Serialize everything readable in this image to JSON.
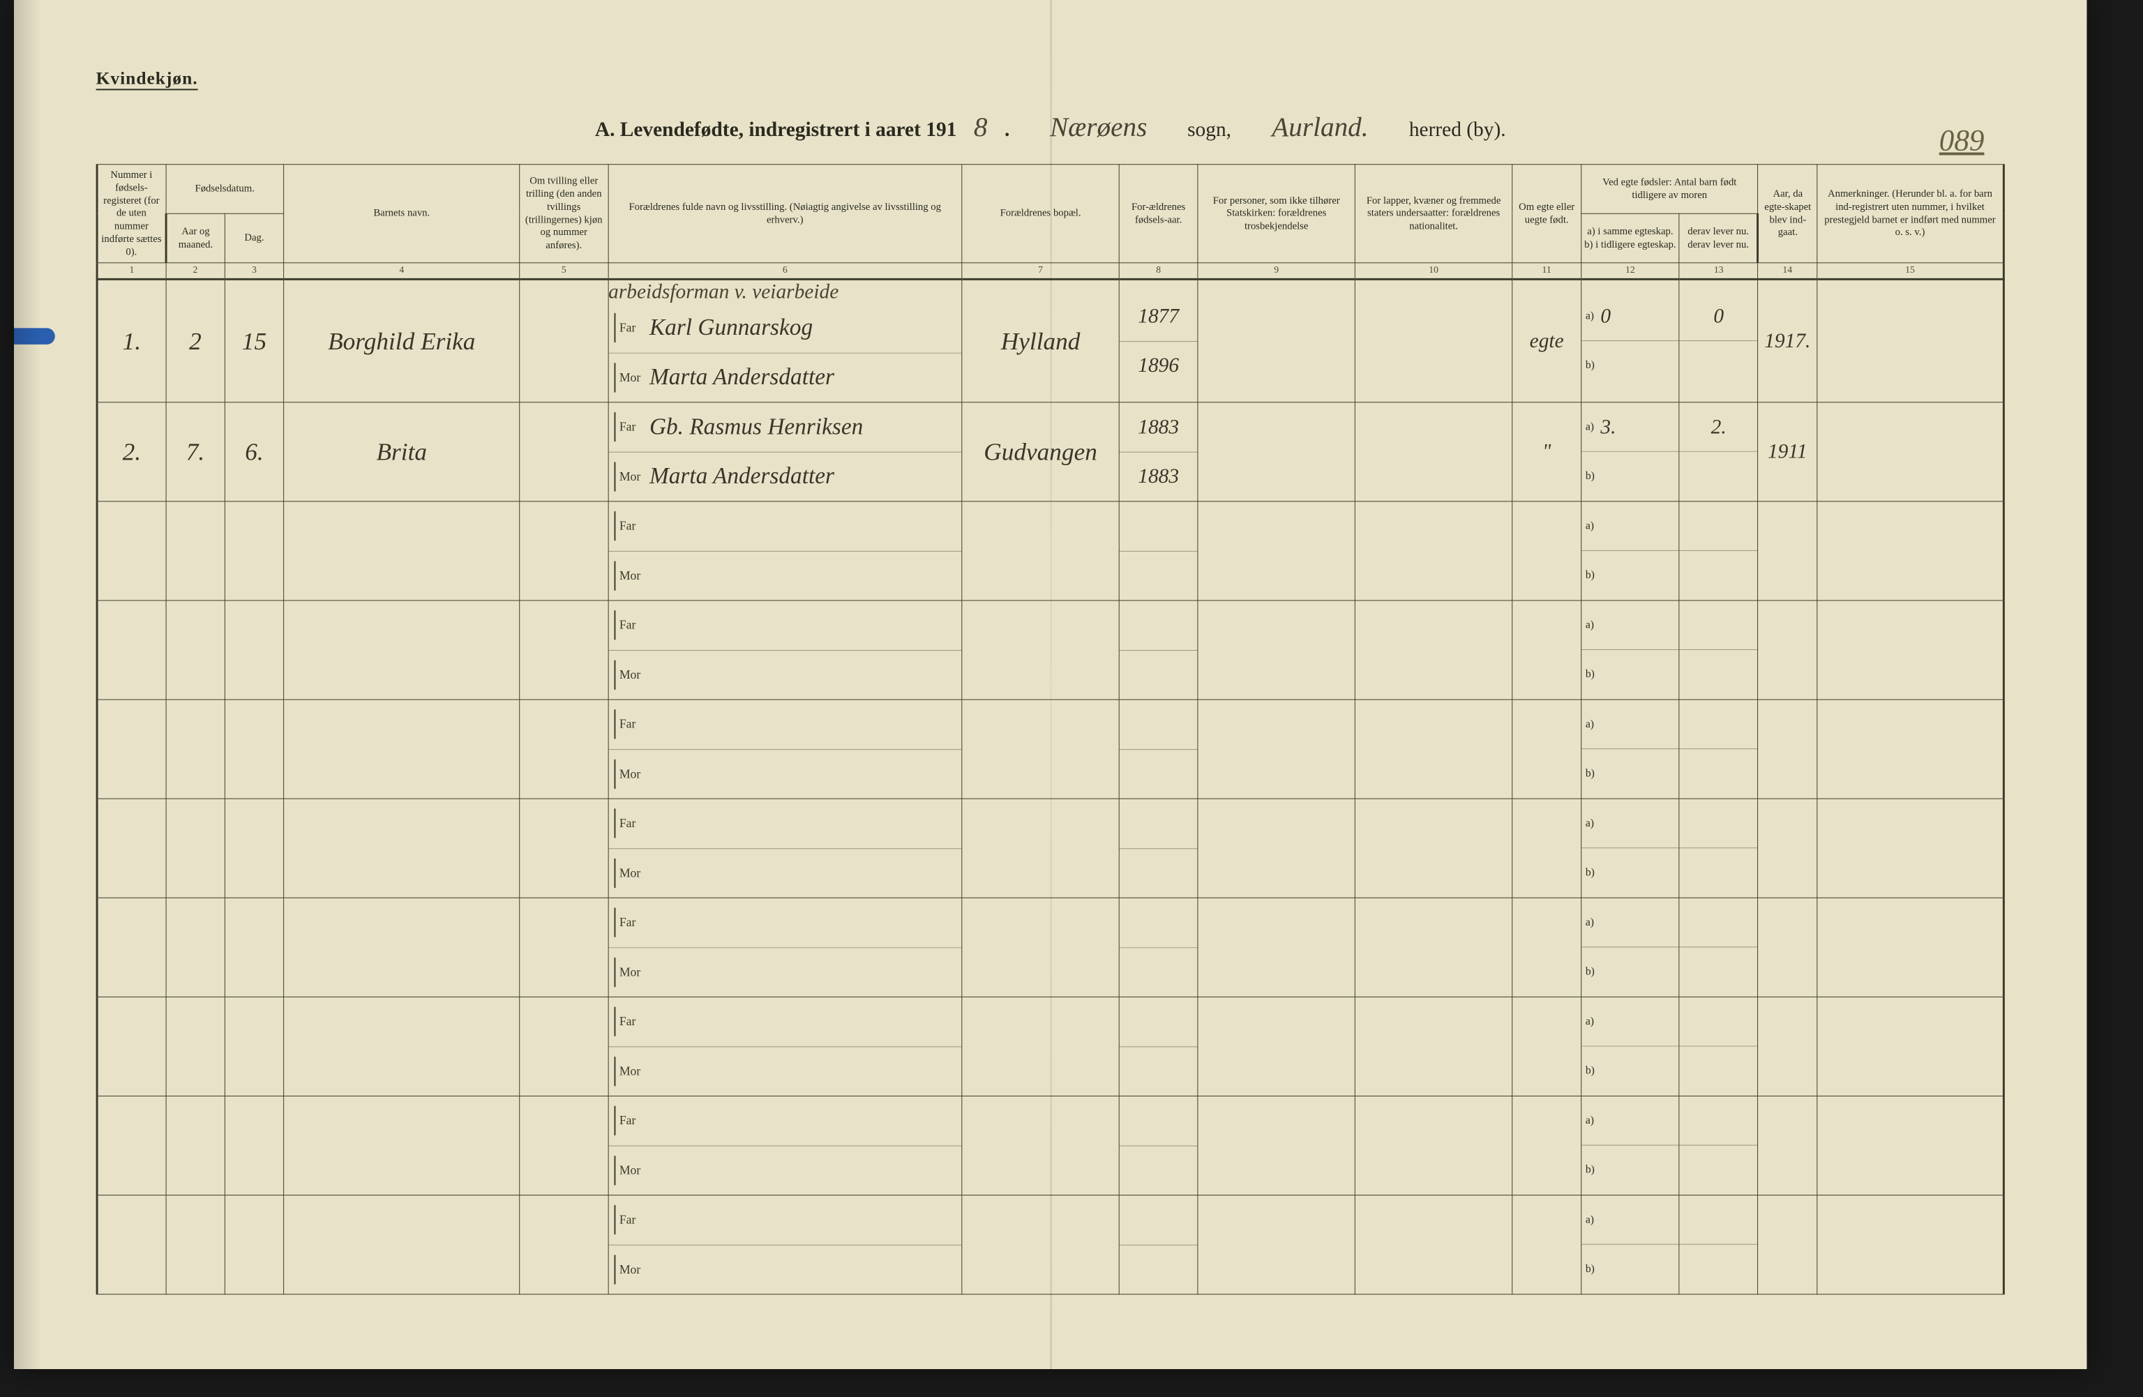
{
  "colors": {
    "paper": "#e8e3c8",
    "ink": "#2a2a20",
    "rule": "#3a3a2a",
    "handwriting": "#3a3528",
    "blue_tab": "#2a5fb0"
  },
  "header": {
    "gender_label": "Kvindekjøn.",
    "title_prefix": "A.  Levendefødte, indregistrert i aaret 191",
    "year_suffix": "8",
    "title_sep1": ".",
    "sogn_hand": "Nærøens",
    "sogn_label": "sogn,",
    "herred_hand": "Aurland.",
    "herred_label": "herred (by).",
    "page_number": "089"
  },
  "columns": {
    "c1": "Nummer i fødsels-registeret (for de uten nummer indførte sættes 0).",
    "c2_group": "Fødselsdatum.",
    "c2": "Aar og maaned.",
    "c3": "Dag.",
    "c4": "Barnets navn.",
    "c5": "Om tvilling eller trilling (den anden tvillings (trillingernes) kjøn og nummer anføres).",
    "c6": "Forældrenes fulde navn og livsstilling. (Nøiagtig angivelse av livsstilling og erhverv.)",
    "c7": "Forældrenes bopæl.",
    "c8": "For-ældrenes fødsels-aar.",
    "c9": "For personer, som ikke tilhører Statskirken: forældrenes trosbekjendelse",
    "c10": "For lapper, kvæner og fremmede staters undersaatter: forældrenes nationalitet.",
    "c11": "Om egte eller uegte født.",
    "c12_group": "Ved egte fødsler: Antal barn født tidligere av moren",
    "c12": "a) i samme egteskap.  b) i tidligere egteskap.",
    "c13": "derav lever nu. derav lever nu.",
    "c14": "Aar, da egte-skapet blev ind-gaat.",
    "c15": "Anmerkninger. (Herunder bl. a. for barn ind-registrert uten nummer, i hvilket prestegjeld barnet er indført med nummer o. s. v.)",
    "nums": [
      "1",
      "2",
      "3",
      "4",
      "5",
      "6",
      "7",
      "8",
      "9",
      "10",
      "11",
      "12",
      "13",
      "14",
      "15"
    ]
  },
  "parent_labels": {
    "far": "Far",
    "mor": "Mor",
    "a": "a)",
    "b": "b)"
  },
  "occupation_note": "arbeidsforman v. veiarbeide",
  "rows": [
    {
      "num": "1.",
      "month": "2",
      "day": "15",
      "child_name": "Borghild Erika",
      "twin": "",
      "far": "Karl Gunnarskog",
      "mor": "Marta Andersdatter",
      "residence": "Hylland",
      "far_year": "1877",
      "mor_year": "1896",
      "religion": "",
      "nationality": "",
      "legit": "egte",
      "a_count": "0",
      "b_count": "",
      "a_alive": "0",
      "b_alive": "",
      "marriage_year": "1917.",
      "remarks": ""
    },
    {
      "num": "2.",
      "month": "7.",
      "day": "6.",
      "child_name": "Brita",
      "twin": "",
      "far": "Gb. Rasmus Henriksen",
      "mor": "Marta Andersdatter",
      "residence": "Gudvangen",
      "far_year": "1883",
      "mor_year": "1883",
      "religion": "",
      "nationality": "",
      "legit": "\"",
      "a_count": "3.",
      "b_count": "",
      "a_alive": "2.",
      "b_alive": "",
      "marriage_year": "1911",
      "remarks": ""
    }
  ],
  "blank_row_count": 8
}
